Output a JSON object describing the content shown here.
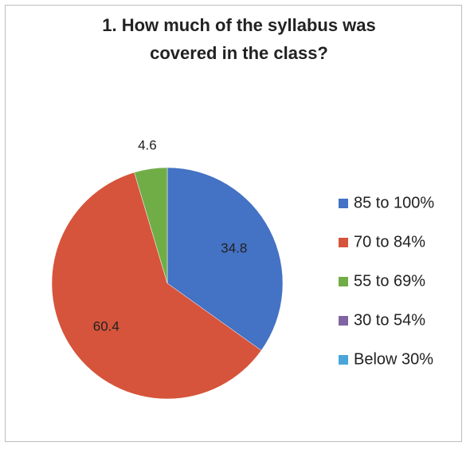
{
  "chart_data": {
    "type": "pie",
    "title": "1. How much of the syllabus was covered in the class?",
    "categories": [
      "85 to 100%",
      "70 to 84%",
      "55 to 69%",
      "30 to 54%",
      "Below 30%"
    ],
    "values": [
      34.8,
      60.4,
      4.6,
      0,
      0
    ],
    "colors": [
      "#4472c4",
      "#d5543b",
      "#70ad47",
      "#8064a2",
      "#4aa6da"
    ],
    "legend": "right"
  }
}
